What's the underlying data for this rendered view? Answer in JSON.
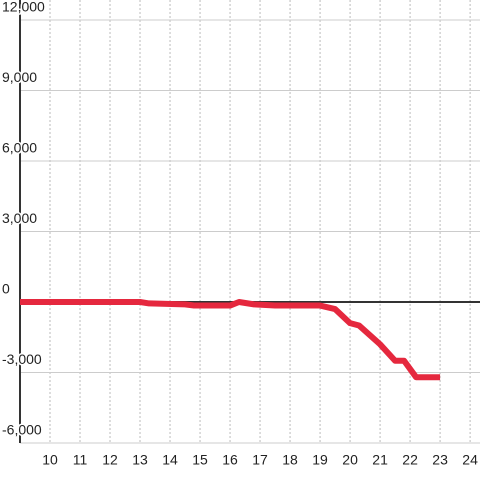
{
  "chart_data": {
    "type": "line",
    "x": [
      9,
      13,
      13.3,
      14.5,
      14.8,
      16,
      16.3,
      16.8,
      17.5,
      19,
      19.5,
      20,
      20.3,
      21,
      21.5,
      21.8,
      22.2,
      23
    ],
    "series": [
      {
        "color": "#e5283e",
        "values": [
          0,
          0,
          -60,
          -100,
          -150,
          -150,
          0,
          -100,
          -150,
          -150,
          -300,
          -900,
          -1000,
          -1800,
          -2500,
          -2500,
          -3200,
          -3200
        ]
      }
    ],
    "xlim": [
      9,
      24.33
    ],
    "xticks": [
      10,
      11,
      12,
      13,
      14,
      15,
      16,
      17,
      18,
      19,
      20,
      21,
      22,
      23,
      24
    ],
    "ylim": [
      -6000,
      12000
    ],
    "yticks": [
      {
        "value": -6000,
        "label": "-6,000"
      },
      {
        "value": -3000,
        "label": "-3,000"
      },
      0,
      {
        "value": 3000,
        "label": "3,000"
      },
      {
        "value": 6000,
        "label": "6,000"
      },
      {
        "value": 9000,
        "label": "9,000"
      },
      {
        "value": 12000,
        "label": "12,000"
      }
    ],
    "grid": true
  }
}
